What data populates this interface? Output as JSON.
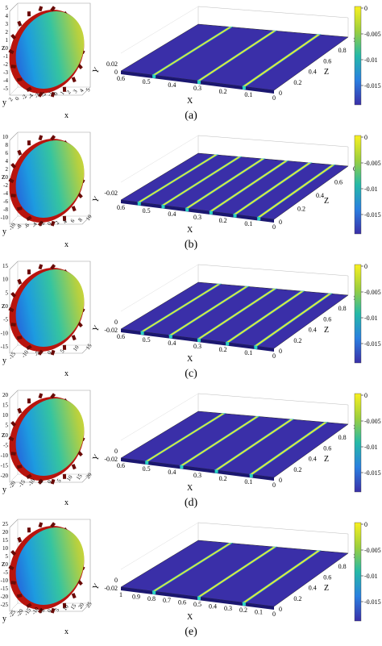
{
  "panels": [
    {
      "caption": "(a)",
      "sphere_ticks_y": [
        "5",
        "4",
        "3",
        "2",
        "1",
        "0",
        "-1",
        "-2",
        "-3",
        "-4",
        "-5"
      ],
      "sphere_ticks_x": [
        "2",
        "0",
        "-2",
        "-4",
        "-3",
        "-2",
        "-1",
        "0",
        "1",
        "2",
        "3",
        "4",
        "5"
      ],
      "sphere_axis": {
        "y": "y",
        "z": "z",
        "x": "x"
      },
      "plate_x_ticks": [
        "0.6",
        "0.5",
        "0.4",
        "0.3",
        "0.2",
        "0.1",
        "0"
      ],
      "plate_z_ticks": [
        "0",
        "0.2",
        "0.4",
        "0.6",
        "0.8",
        "1"
      ],
      "plate_y_ticks": [
        "0.02",
        "0"
      ],
      "plate_labels": {
        "x": "X",
        "y": "Y",
        "z": "Z"
      },
      "colorbar_ticks": [
        "0",
        "-0.005",
        "-0.01",
        "-0.015"
      ],
      "stripes": 3
    },
    {
      "caption": "(b)",
      "sphere_ticks_y": [
        "10",
        "8",
        "6",
        "4",
        "2",
        "0",
        "-2",
        "-4",
        "-6",
        "-8",
        "-10"
      ],
      "sphere_ticks_x": [
        "-10",
        "-8",
        "-6",
        "-4",
        "-2",
        "0",
        "2",
        "4",
        "6",
        "8",
        "10"
      ],
      "sphere_axis": {
        "y": "y",
        "z": "z",
        "x": "x"
      },
      "plate_x_ticks": [
        "0.6",
        "0.5",
        "0.4",
        "0.3",
        "0.2",
        "0.1",
        "0"
      ],
      "plate_z_ticks": [
        "0",
        "0.2",
        "0.4",
        "0.6",
        "0.8"
      ],
      "plate_y_ticks": [
        "-0.02"
      ],
      "plate_labels": {
        "x": "X",
        "y": "Y",
        "z": "Z"
      },
      "colorbar_ticks": [
        "0",
        "-0.005",
        "-0.01",
        "-0.015"
      ],
      "stripes": 6
    },
    {
      "caption": "(c)",
      "sphere_ticks_y": [
        "15",
        "10",
        "5",
        "0",
        "-5",
        "-10",
        "-15"
      ],
      "sphere_ticks_x": [
        "-15",
        "-10",
        "-5",
        "0",
        "5",
        "10",
        "15"
      ],
      "sphere_axis": {
        "y": "y",
        "z": "z",
        "x": "x"
      },
      "plate_x_ticks": [
        "0.6",
        "0.5",
        "0.4",
        "0.3",
        "0.2",
        "0.1",
        "0"
      ],
      "plate_z_ticks": [
        "0",
        "0.2",
        "0.4",
        "0.6",
        "0.8",
        "1"
      ],
      "plate_y_ticks": [
        "0",
        "-0.02"
      ],
      "plate_labels": {
        "x": "X",
        "y": "Y",
        "z": "Z"
      },
      "colorbar_ticks": [
        "0",
        "-0.005",
        "-0.01",
        "-0.015"
      ],
      "stripes": 5
    },
    {
      "caption": "(d)",
      "sphere_ticks_y": [
        "20",
        "15",
        "10",
        "5",
        "0",
        "-5",
        "-10",
        "-15",
        "-20"
      ],
      "sphere_ticks_x": [
        "-20",
        "-15",
        "-10",
        "-5",
        "0",
        "5",
        "10",
        "15",
        "20"
      ],
      "sphere_axis": {
        "y": "y",
        "z": "z",
        "x": "x"
      },
      "plate_x_ticks": [
        "0.6",
        "0.5",
        "0.4",
        "0.3",
        "0.2",
        "0.1",
        "0"
      ],
      "plate_z_ticks": [
        "0",
        "0.2",
        "0.4",
        "0.6",
        "0.8",
        "1"
      ],
      "plate_y_ticks": [
        "0",
        "-0.02"
      ],
      "plate_labels": {
        "x": "X",
        "y": "Y",
        "z": "Z"
      },
      "colorbar_ticks": [
        "0",
        "-0.005",
        "-0.01",
        "-0.015"
      ],
      "stripes": 4
    },
    {
      "caption": "(e)",
      "sphere_ticks_y": [
        "25",
        "20",
        "15",
        "10",
        "5",
        "0",
        "-5",
        "-10",
        "-15",
        "-20",
        "-25"
      ],
      "sphere_ticks_x": [
        "-25",
        "-20",
        "-15",
        "-10",
        "-5",
        "0",
        "5",
        "10",
        "15",
        "20",
        "25"
      ],
      "sphere_axis": {
        "y": "y",
        "z": "z",
        "x": "x"
      },
      "plate_x_ticks": [
        "1",
        "0.9",
        "0.8",
        "0.7",
        "0.6",
        "0.5",
        "0.4",
        "0.3",
        "0.2",
        "0.1",
        "0"
      ],
      "plate_z_ticks": [
        "0",
        "0.2",
        "0.4",
        "0.6",
        "0.8",
        "1"
      ],
      "plate_y_ticks": [
        "0",
        "-0.02"
      ],
      "plate_labels": {
        "x": "X",
        "y": "Y",
        "z": "Z"
      },
      "colorbar_ticks": [
        "0",
        "-0.005",
        "-0.01",
        "-0.015"
      ],
      "stripes": 3
    }
  ],
  "colors": {
    "plate": "#3a2fa8",
    "stripe": "#f2e830",
    "stripe_edge": "#35c1b5",
    "sphere_rim": "#b8140e"
  }
}
